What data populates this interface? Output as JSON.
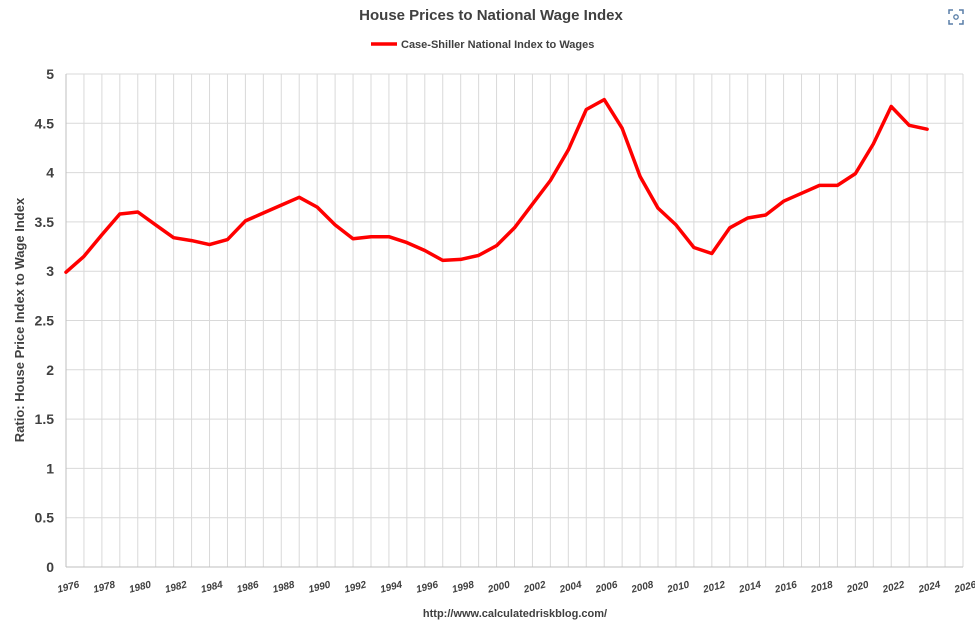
{
  "chart_data": {
    "type": "line",
    "title": "House Prices to National Wage Index",
    "ylabel": "Ratio: House Price Index to Wage Index",
    "xlabel": "",
    "footer": "http://www.calculatedriskblog.com/",
    "legend_position": "top-center",
    "grid": true,
    "xlim": [
      1976,
      2026
    ],
    "ylim": [
      0,
      5
    ],
    "x_ticks": [
      "1976",
      "1978",
      "1980",
      "1982",
      "1984",
      "1986",
      "1988",
      "1990",
      "1992",
      "1994",
      "1996",
      "1998",
      "2000",
      "2002",
      "2004",
      "2006",
      "2008",
      "2010",
      "2012",
      "2014",
      "2016",
      "2018",
      "2020",
      "2022",
      "2024",
      "2026"
    ],
    "y_ticks": [
      "0",
      "0.5",
      "1",
      "1.5",
      "2",
      "2.5",
      "3",
      "3.5",
      "4",
      "4.5",
      "5"
    ],
    "series": [
      {
        "name": "Case-Shiller National Index to Wages",
        "color": "#ff0000",
        "x": [
          1976,
          1977,
          1978,
          1979,
          1980,
          1981,
          1982,
          1983,
          1984,
          1985,
          1986,
          1987,
          1988,
          1989,
          1990,
          1991,
          1992,
          1993,
          1994,
          1995,
          1996,
          1997,
          1998,
          1999,
          2000,
          2001,
          2002,
          2003,
          2004,
          2005,
          2006,
          2007,
          2008,
          2009,
          2010,
          2011,
          2012,
          2013,
          2014,
          2015,
          2016,
          2017,
          2018,
          2019,
          2020,
          2021,
          2022,
          2023,
          2024
        ],
        "values": [
          2.99,
          3.15,
          3.37,
          3.58,
          3.6,
          3.47,
          3.34,
          3.31,
          3.27,
          3.32,
          3.51,
          3.59,
          3.67,
          3.75,
          3.65,
          3.47,
          3.33,
          3.35,
          3.35,
          3.29,
          3.21,
          3.11,
          3.12,
          3.16,
          3.26,
          3.44,
          3.68,
          3.92,
          4.23,
          4.64,
          4.74,
          4.45,
          3.96,
          3.64,
          3.47,
          3.24,
          3.18,
          3.44,
          3.54,
          3.57,
          3.71,
          3.79,
          3.87,
          3.87,
          3.99,
          4.29,
          4.67,
          4.48,
          4.44
        ]
      }
    ]
  },
  "ui": {
    "expand_icon": "expand-icon"
  }
}
